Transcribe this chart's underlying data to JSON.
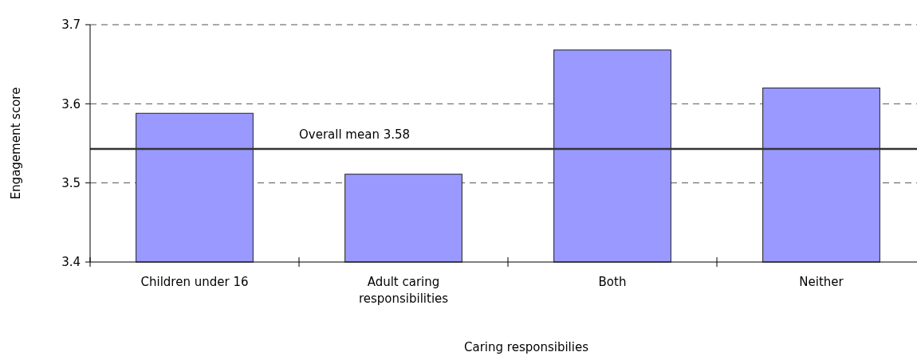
{
  "chart_data": {
    "type": "bar",
    "xlabel": "Caring responsibilies",
    "ylabel": "Engagement score",
    "categories": [
      "Children under 16",
      "Adult caring responsibilities",
      "Both",
      "Neither"
    ],
    "values": [
      3.588,
      3.511,
      3.668,
      3.62
    ],
    "color": "#9999ff",
    "ylim": [
      3.4,
      3.7
    ],
    "yticks": [
      3.4,
      3.5,
      3.6,
      3.7
    ],
    "grid": "y",
    "ref_lines": [
      {
        "axis": "y",
        "value": 3.543,
        "label": "Overall mean 3.58",
        "color": "#333333",
        "line_style": "solid"
      }
    ]
  }
}
